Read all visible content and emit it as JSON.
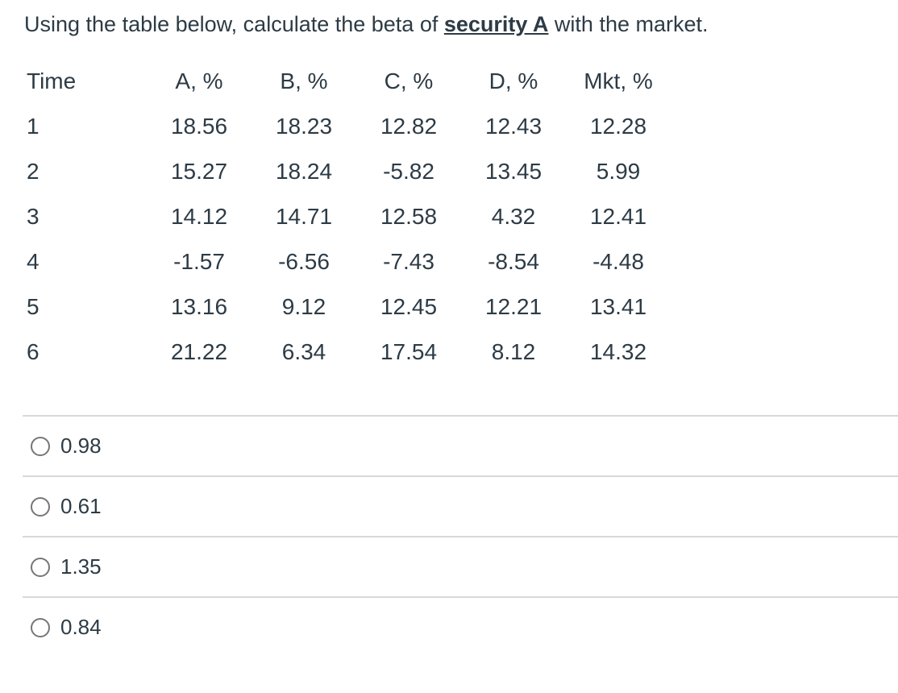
{
  "question": {
    "text_before": "Using the table below, calculate the beta of ",
    "emphasis": "security A",
    "text_after": " with the market."
  },
  "table": {
    "headers": [
      "Time",
      "A, %",
      "B, %",
      "C, %",
      "D, %",
      "Mkt, %"
    ],
    "rows": [
      [
        "1",
        "18.56",
        "18.23",
        "12.82",
        "12.43",
        "12.28"
      ],
      [
        "2",
        "15.27",
        "18.24",
        "-5.82",
        "13.45",
        "5.99"
      ],
      [
        "3",
        "14.12",
        "14.71",
        "12.58",
        "4.32",
        "12.41"
      ],
      [
        "4",
        "-1.57",
        "-6.56",
        "-7.43",
        "-8.54",
        "-4.48"
      ],
      [
        "5",
        "13.16",
        "9.12",
        "12.45",
        "12.21",
        "13.41"
      ],
      [
        "6",
        "21.22",
        "6.34",
        "17.54",
        "8.12",
        "14.32"
      ]
    ]
  },
  "options": [
    {
      "label": "0.98",
      "selected": false
    },
    {
      "label": "0.61",
      "selected": false
    },
    {
      "label": "1.35",
      "selected": false
    },
    {
      "label": "0.84",
      "selected": false
    }
  ],
  "colors": {
    "text": "#2d3b45",
    "divider": "#d8d8d8",
    "radio_border": "#767676",
    "background": "#ffffff"
  }
}
